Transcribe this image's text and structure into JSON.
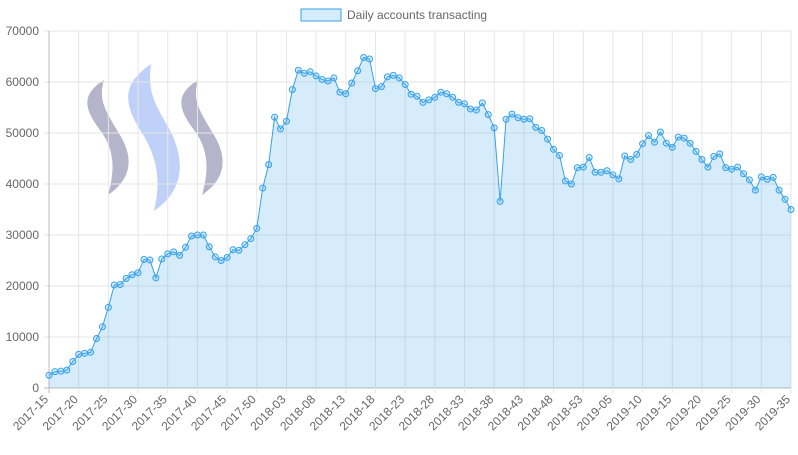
{
  "chart_data": {
    "type": "area",
    "categories": [
      "2017-15",
      null,
      null,
      null,
      null,
      "2017-20",
      null,
      null,
      null,
      null,
      "2017-25",
      null,
      null,
      null,
      null,
      "2017-30",
      null,
      null,
      null,
      null,
      "2017-35",
      null,
      null,
      null,
      null,
      "2017-40",
      null,
      null,
      null,
      null,
      "2017-45",
      null,
      null,
      null,
      null,
      "2017-50",
      null,
      null,
      null,
      null,
      "2018-03",
      null,
      null,
      null,
      null,
      "2018-08",
      null,
      null,
      null,
      null,
      "2018-13",
      null,
      null,
      null,
      null,
      "2018-18",
      null,
      null,
      null,
      null,
      "2018-23",
      null,
      null,
      null,
      null,
      "2018-28",
      null,
      null,
      null,
      null,
      "2018-33",
      null,
      null,
      null,
      null,
      "2018-38",
      null,
      null,
      null,
      null,
      "2018-43",
      null,
      null,
      null,
      null,
      "2018-48",
      null,
      null,
      null,
      null,
      "2018-53",
      null,
      null,
      null,
      null,
      "2019-05",
      null,
      null,
      null,
      null,
      "2019-10",
      null,
      null,
      null,
      null,
      "2019-15",
      null,
      null,
      null,
      null,
      "2019-20",
      null,
      null,
      null,
      null,
      "2019-25",
      null,
      null,
      null,
      null,
      "2019-30",
      null,
      null,
      null,
      null,
      "2019-35"
    ],
    "series": [
      {
        "name": "Daily accounts transacting",
        "color": "#36a2eb",
        "values": [
          2500,
          3200,
          3300,
          3500,
          5200,
          6600,
          6800,
          7000,
          9700,
          12000,
          15800,
          20200,
          20300,
          21500,
          22200,
          22600,
          25200,
          25100,
          21600,
          25300,
          26300,
          26700,
          26000,
          27600,
          29800,
          30000,
          30000,
          27700,
          25700,
          25000,
          25600,
          27100,
          27000,
          28100,
          29300,
          31300,
          39200,
          43800,
          53100,
          50800,
          52300,
          58500,
          62300,
          61700,
          62000,
          61200,
          60500,
          60200,
          60800,
          58000,
          57700,
          59800,
          62200,
          64800,
          64500,
          58700,
          59100,
          61000,
          61300,
          60800,
          59500,
          57600,
          57200,
          56000,
          56500,
          57000,
          58000,
          57700,
          57000,
          56000,
          55700,
          54700,
          54500,
          55900,
          53600,
          51000,
          36600,
          52700,
          53700,
          53000,
          52700,
          52800,
          51100,
          50500,
          48800,
          46800,
          45600,
          40600,
          40000,
          43200,
          43300,
          45200,
          42300,
          42300,
          42600,
          41800,
          41000,
          45500,
          44800,
          45800,
          47900,
          49500,
          48200,
          50200,
          48000,
          47200,
          49200,
          49000,
          48000,
          46400,
          44800,
          43300,
          45400,
          45900,
          43200,
          42900,
          43300,
          42000,
          40800,
          38800,
          41400,
          40900,
          41300,
          38800,
          37000,
          35000
        ]
      }
    ],
    "ylim": [
      0,
      70000
    ],
    "yticks": [
      0,
      10000,
      20000,
      30000,
      40000,
      50000,
      60000,
      70000
    ],
    "grid": true,
    "legend": "top"
  }
}
